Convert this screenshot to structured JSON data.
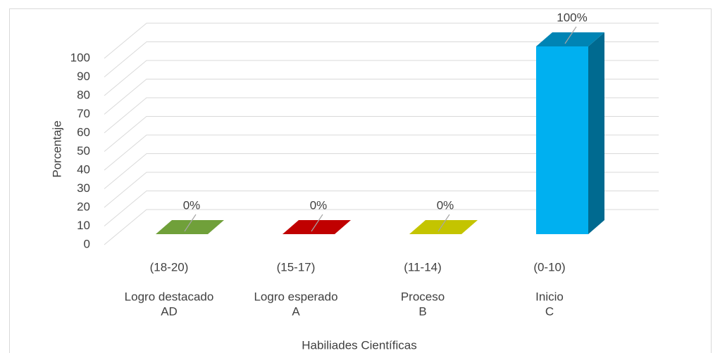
{
  "chart_data": {
    "type": "bar3d",
    "categories": [
      [
        "(18-20)",
        "Logro destacado",
        "AD"
      ],
      [
        "(15-17)",
        "Logro esperado",
        "A"
      ],
      [
        "(11-14)",
        "Proceso",
        "B"
      ],
      [
        "(0-10)",
        "Inicio",
        "C"
      ]
    ],
    "values": [
      0,
      0,
      0,
      100
    ],
    "value_labels": [
      "0%",
      "0%",
      "0%",
      "100%"
    ],
    "colors": [
      "#70a03a",
      "#c00000",
      "#c4c400",
      "#00b0f0"
    ],
    "ylim": [
      0,
      100
    ],
    "yticks": [
      0,
      10,
      20,
      30,
      40,
      50,
      60,
      70,
      80,
      90,
      100
    ],
    "grid": true,
    "y_label": "Porcentaje",
    "x_label": "Habiliades Científicas"
  }
}
